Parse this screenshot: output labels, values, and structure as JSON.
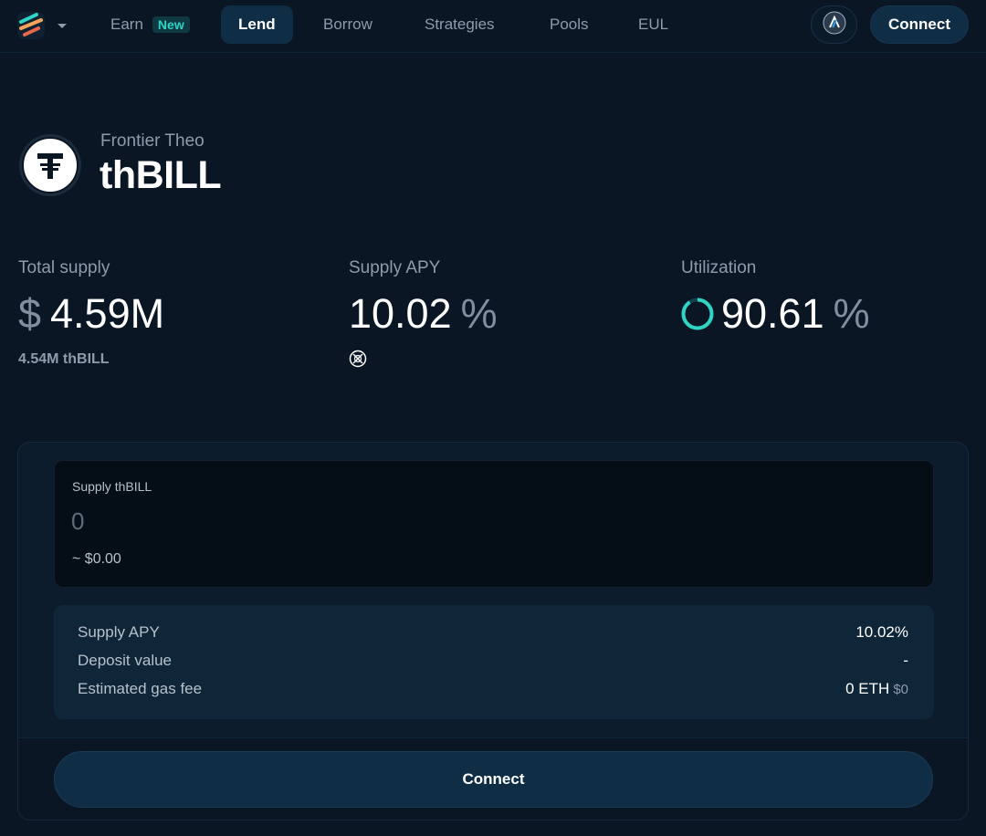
{
  "nav": {
    "logo_icon": "euler-logo-icon",
    "items": [
      {
        "label": "Earn",
        "badge": "New"
      },
      {
        "label": "Lend"
      },
      {
        "label": "Borrow"
      },
      {
        "label": "Strategies"
      },
      {
        "label": "Pools"
      },
      {
        "label": "EUL"
      }
    ],
    "active": "Lend",
    "network_icon": "arbitrum-icon",
    "connect_label": "Connect"
  },
  "asset": {
    "issuer": "Frontier Theo",
    "symbol": "thBILL",
    "icon": "tether-icon"
  },
  "stats": {
    "total_supply": {
      "label": "Total supply",
      "currency": "$",
      "value": "4.59M",
      "sub": "4.54M thBILL"
    },
    "supply_apy": {
      "label": "Supply APY",
      "value": "10.02",
      "unit": "%",
      "reward_icon": "reward-token-icon"
    },
    "utilization": {
      "label": "Utilization",
      "value": "90.61",
      "unit": "%",
      "fraction": 0.9061
    }
  },
  "supply_form": {
    "label": "Supply thBILL",
    "placeholder": "0",
    "usd_value": "~ $0.00"
  },
  "summary": {
    "rows": [
      {
        "label": "Supply APY",
        "value": "10.02%"
      },
      {
        "label": "Deposit value",
        "value": "-"
      },
      {
        "label": "Estimated gas fee",
        "value": "0 ETH",
        "value_usd": "$0"
      }
    ]
  },
  "action": {
    "connect_label": "Connect"
  },
  "colors": {
    "background": "#0a1624",
    "accent_teal": "#2fd4c4",
    "button": "#0f2d45"
  }
}
